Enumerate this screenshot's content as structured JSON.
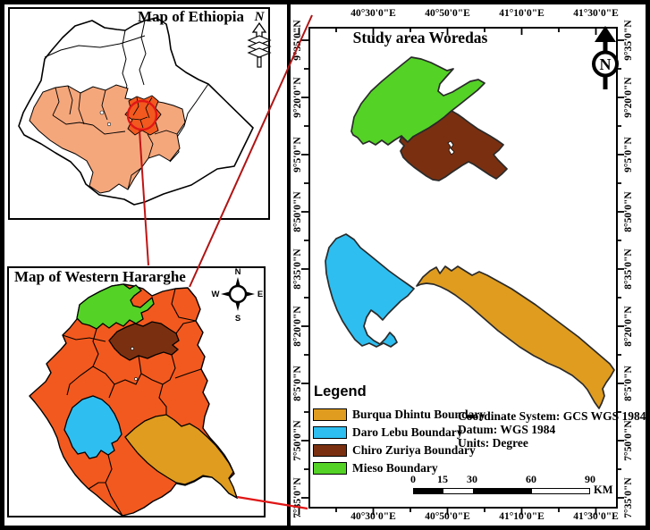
{
  "colors": {
    "highlight_region": "#F5A77C",
    "west_hararghe_orange": "#F2591E",
    "mieso_green": "#54D226",
    "chiro_zuriya_brown": "#7A3010",
    "daro_lebu_blue": "#2EBEF0",
    "burqua_dhintu_gold": "#DF9C1F",
    "locator_red": "#D21414"
  },
  "ethiopia_panel": {
    "title": "Map of Ethiopia",
    "north_label": "N"
  },
  "hararghe_panel": {
    "title": "Map of Western Hararghe",
    "compass": {
      "n": "N",
      "e": "E",
      "s": "S",
      "w": "W"
    }
  },
  "study_panel": {
    "title": "Study area Woredas",
    "north_label": "N",
    "x_labels": [
      "40°30'0\"E",
      "40°50'0\"E",
      "41°10'0\"E",
      "41°30'0\"E"
    ],
    "y_labels": [
      "9°35'0\"N",
      "9°20'0\"N",
      "9°5'0\"N",
      "8°50'0\"N",
      "8°35'0\"N",
      "8°20'0\"N",
      "8°5'0\"N",
      "7°50'0\"N",
      "7°35'0\"N"
    ],
    "legend": {
      "title": "Legend",
      "items": [
        {
          "label": "Burqua Dhintu Boundary",
          "color": "#DF9C1F"
        },
        {
          "label": "Daro Lebu Boundary",
          "color": "#2EBEF0"
        },
        {
          "label": "Chiro Zuriya Boundary",
          "color": "#7A3010"
        },
        {
          "label": "Mieso Boundary",
          "color": "#54D226"
        }
      ]
    },
    "projection_lines": [
      "Coordinate System: GCS WGS 1984",
      "Datum: WGS 1984",
      "Units: Degree"
    ],
    "scale_bar": {
      "labels": [
        "0",
        "15",
        "30",
        "60",
        "90"
      ],
      "unit": "KM"
    }
  }
}
